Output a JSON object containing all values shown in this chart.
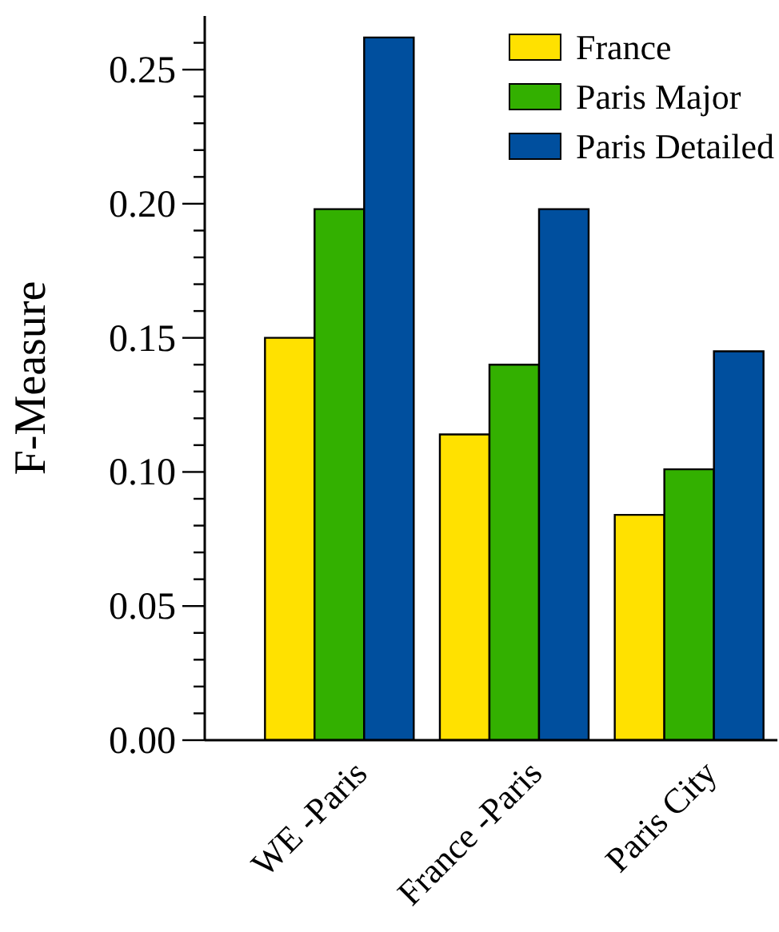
{
  "chart_data": {
    "type": "bar",
    "ylabel": "F-Measure",
    "categories": [
      "WE -Paris",
      "France -Paris",
      "Paris City"
    ],
    "series": [
      {
        "name": "France",
        "color": "#ffe100",
        "values": [
          0.15,
          0.114,
          0.084
        ]
      },
      {
        "name": "Paris Major",
        "color": "#33b000",
        "values": [
          0.198,
          0.14,
          0.101
        ]
      },
      {
        "name": "Paris Detailed",
        "color": "#004f9e",
        "values": [
          0.262,
          0.198,
          0.145
        ]
      }
    ],
    "ylim": [
      0,
      0.27
    ],
    "yticks": [
      {
        "value": 0,
        "label": "0.00"
      },
      {
        "value": 0.01,
        "label": null
      },
      {
        "value": 0.02,
        "label": null
      },
      {
        "value": 0.03,
        "label": null
      },
      {
        "value": 0.04,
        "label": null
      },
      0.05,
      {
        "value": 0.06,
        "label": null
      },
      {
        "value": 0.07,
        "label": null
      },
      {
        "value": 0.08,
        "label": null
      },
      {
        "value": 0.09,
        "label": null
      },
      {
        "value": 0.1,
        "label": "0.10"
      },
      {
        "value": 0.11,
        "label": null
      },
      {
        "value": 0.12,
        "label": null
      },
      {
        "value": 0.13,
        "label": null
      },
      {
        "value": 0.14,
        "label": null
      },
      0.15,
      {
        "value": 0.16,
        "label": null
      },
      {
        "value": 0.17,
        "label": null
      },
      {
        "value": 0.18,
        "label": null
      },
      {
        "value": 0.19,
        "label": null
      },
      {
        "value": 0.2,
        "label": "0.20"
      },
      {
        "value": 0.21,
        "label": null
      },
      {
        "value": 0.22,
        "label": null
      },
      {
        "value": 0.23,
        "label": null
      },
      {
        "value": 0.24,
        "label": null
      },
      0.25,
      {
        "value": 0.26,
        "label": null
      }
    ],
    "grid": false,
    "legend": "top right"
  }
}
